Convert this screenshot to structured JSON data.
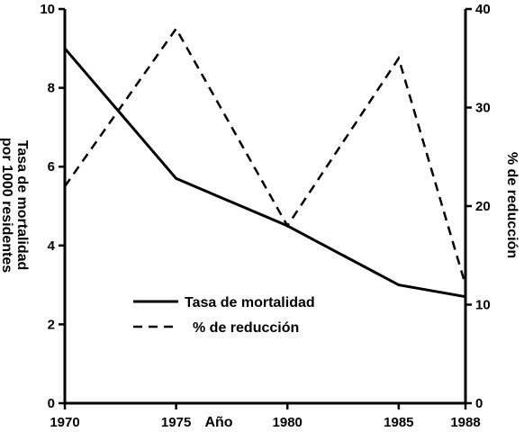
{
  "chart_data": {
    "type": "line",
    "xlabel": "Año",
    "ylabel_left": [
      "Tasa de mortalidad",
      "por 1000 residentes"
    ],
    "ylabel_right": "% de reducción",
    "x_ticks": [
      "1970",
      "1975",
      "1980",
      "1985",
      "1988"
    ],
    "ylim_left": [
      0,
      10
    ],
    "yticks_left": [
      "0",
      "2",
      "4",
      "6",
      "8",
      "10"
    ],
    "ylim_right": [
      0,
      40
    ],
    "yticks_right": [
      "0",
      "10",
      "20",
      "30",
      "40"
    ],
    "grid": false,
    "legend_position": "lower-left",
    "series": [
      {
        "name": "Tasa de mortalidad",
        "axis": "left",
        "line_style": "solid",
        "x": [
          1970,
          1975,
          1980,
          1985,
          1988
        ],
        "values": [
          9.0,
          5.7,
          4.5,
          3.0,
          2.7
        ]
      },
      {
        "name": "% de reducción",
        "axis": "right",
        "line_style": "dashed",
        "x": [
          1970,
          1975,
          1980,
          1985,
          1988
        ],
        "values": [
          22,
          38,
          18,
          35,
          12
        ]
      }
    ]
  }
}
